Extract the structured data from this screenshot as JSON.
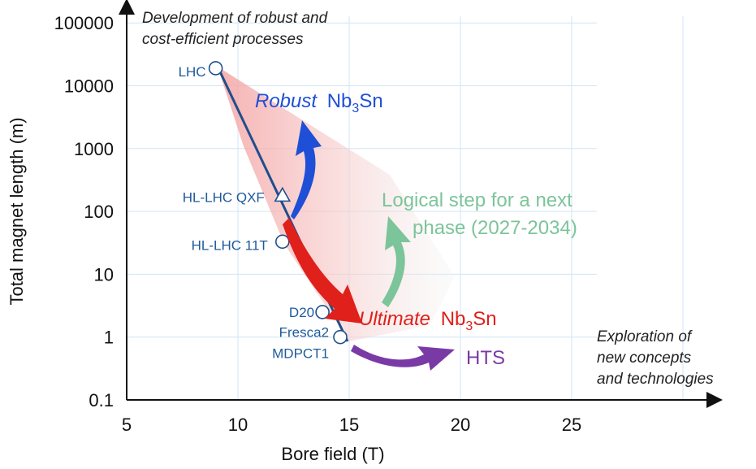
{
  "chart_data": {
    "type": "scatter",
    "xlabel": "Bore field (T)",
    "ylabel": "Total magnet length (m)",
    "xlim": [
      5,
      30
    ],
    "ylim": [
      0.1,
      100000
    ],
    "y_scale": "log",
    "grid": true,
    "x_ticks": [
      "5",
      "10",
      "15",
      "20",
      "25"
    ],
    "y_ticks": [
      "0.1",
      "1",
      "10",
      "100",
      "1000",
      "10000",
      "100000"
    ],
    "points": [
      {
        "label": "LHC",
        "x": 9,
        "y": 19000,
        "marker": "circle"
      },
      {
        "label": "HL-LHC QXF",
        "x": 12,
        "y": 180,
        "marker": "triangle"
      },
      {
        "label": "HL-LHC 11T",
        "x": 12,
        "y": 33,
        "marker": "circle"
      },
      {
        "label": "D20",
        "x": 13.8,
        "y": 2.5,
        "marker": "circle"
      },
      {
        "label": "Fresca2",
        "x": 14.6,
        "y": 1,
        "marker": "circle"
      },
      {
        "label": "MDPCT1",
        "x": 14.6,
        "y": 1,
        "marker": "circle"
      }
    ],
    "annotations": {
      "top_line1": "Development of robust and",
      "top_line2": "cost-efficient processes",
      "right_line1": "Exploration of",
      "right_line2": "new concepts",
      "right_line3": "and technologies"
    },
    "arrows": {
      "robust_italic": "Robust",
      "robust_main": "Nb",
      "robust_sub": "3",
      "robust_tail": "Sn",
      "logical_line1": "Logical step for a next",
      "logical_line2": "phase (2027-2034)",
      "ultimate_italic": "Ultimate",
      "ultimate_main": "Nb",
      "ultimate_sub": "3",
      "ultimate_tail": "Sn",
      "hts": "HTS"
    },
    "colors": {
      "line": "#1f4e8c",
      "robust": "#1f4fd6",
      "logical": "#7cc49a",
      "ultimate": "#e0201a",
      "hts": "#7a3aa6",
      "grid": "#cfe6f5"
    }
  }
}
